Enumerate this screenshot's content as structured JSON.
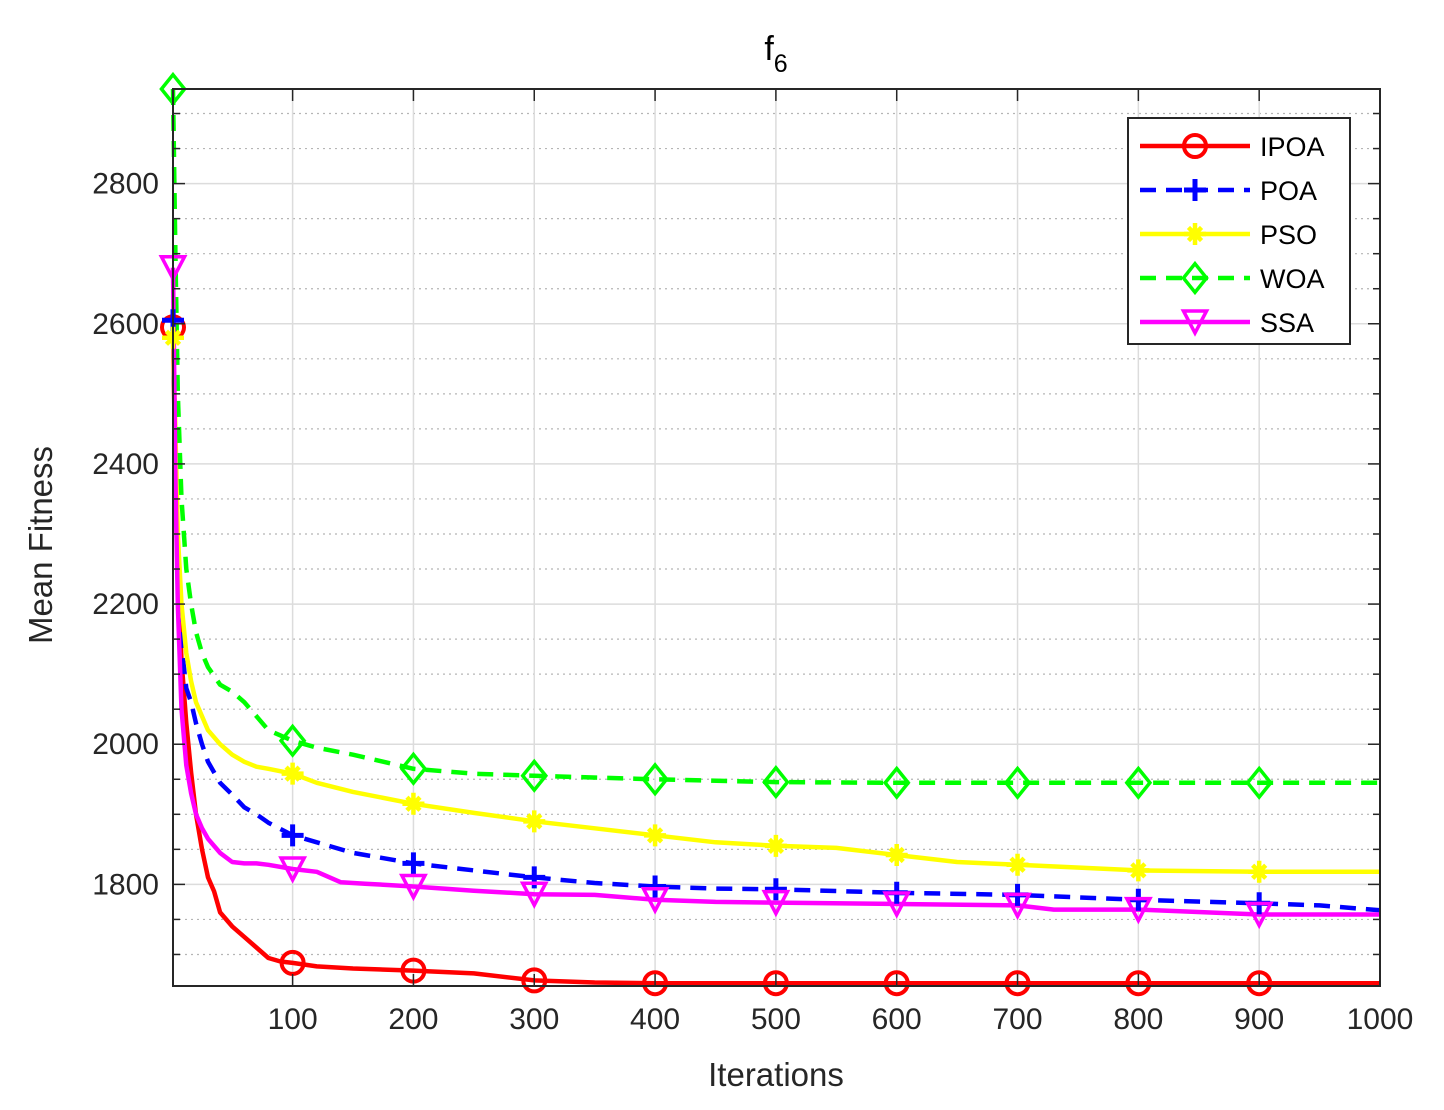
{
  "chart_data": {
    "type": "line",
    "title": "f",
    "title_subscript": "6",
    "xlabel": "Iterations",
    "ylabel": "Mean Fitness",
    "xlim": [
      1,
      1000
    ],
    "ylim": [
      1655,
      2935
    ],
    "x_ticks": [
      100,
      200,
      300,
      400,
      500,
      600,
      700,
      800,
      900,
      1000
    ],
    "y_ticks": [
      1800,
      2000,
      2200,
      2400,
      2600,
      2800
    ],
    "grid": true,
    "minor_grid": true,
    "legend_position": "top-right",
    "series": [
      {
        "name": "IPOA",
        "color": "#ff0000",
        "dash": "solid",
        "marker": "circle",
        "x": [
          1,
          3,
          5,
          8,
          12,
          16,
          20,
          25,
          30,
          35,
          40,
          50,
          60,
          70,
          80,
          90,
          100,
          120,
          150,
          200,
          250,
          300,
          350,
          400,
          500,
          600,
          700,
          800,
          900,
          1000
        ],
        "y": [
          2595,
          2380,
          2230,
          2120,
          2030,
          1960,
          1900,
          1850,
          1810,
          1790,
          1760,
          1740,
          1725,
          1710,
          1695,
          1690,
          1688,
          1683,
          1680,
          1677,
          1673,
          1663,
          1660,
          1659,
          1659,
          1659,
          1659,
          1659,
          1659,
          1659
        ]
      },
      {
        "name": "POA",
        "color": "#0000ff",
        "dash": "dashed",
        "marker": "plus",
        "x": [
          1,
          3,
          5,
          8,
          12,
          16,
          20,
          25,
          30,
          40,
          50,
          60,
          70,
          80,
          100,
          120,
          150,
          200,
          250,
          300,
          350,
          400,
          450,
          500,
          600,
          700,
          800,
          900,
          950,
          1000
        ],
        "y": [
          2605,
          2420,
          2250,
          2140,
          2080,
          2060,
          2030,
          2000,
          1975,
          1945,
          1928,
          1910,
          1900,
          1888,
          1870,
          1860,
          1845,
          1830,
          1820,
          1810,
          1802,
          1797,
          1794,
          1793,
          1788,
          1785,
          1778,
          1773,
          1770,
          1763
        ]
      },
      {
        "name": "PSO",
        "color": "#ffff00",
        "dash": "solid",
        "marker": "asterisk",
        "x": [
          1,
          3,
          5,
          8,
          12,
          16,
          20,
          25,
          30,
          40,
          50,
          60,
          70,
          80,
          100,
          120,
          150,
          200,
          250,
          300,
          350,
          400,
          450,
          500,
          550,
          600,
          650,
          700,
          800,
          900,
          1000
        ],
        "y": [
          2580,
          2450,
          2300,
          2200,
          2130,
          2090,
          2060,
          2040,
          2020,
          2000,
          1985,
          1975,
          1968,
          1965,
          1958,
          1945,
          1932,
          1915,
          1902,
          1890,
          1880,
          1870,
          1860,
          1855,
          1852,
          1842,
          1832,
          1828,
          1820,
          1818,
          1818
        ]
      },
      {
        "name": "WOA",
        "color": "#00ff00",
        "dash": "dashed",
        "marker": "diamond",
        "x": [
          1,
          3,
          5,
          8,
          12,
          16,
          20,
          25,
          30,
          40,
          50,
          60,
          70,
          80,
          100,
          120,
          150,
          200,
          250,
          300,
          400,
          500,
          600,
          700,
          800,
          900,
          1000
        ],
        "y": [
          2935,
          2700,
          2500,
          2350,
          2250,
          2200,
          2160,
          2130,
          2110,
          2085,
          2075,
          2060,
          2040,
          2020,
          2005,
          1995,
          1985,
          1965,
          1958,
          1955,
          1950,
          1946,
          1945,
          1945,
          1945,
          1945,
          1945
        ]
      },
      {
        "name": "SSA",
        "color": "#ff00ff",
        "dash": "solid",
        "marker": "triangle-down",
        "x": [
          1,
          3,
          5,
          8,
          12,
          16,
          20,
          25,
          30,
          40,
          50,
          60,
          70,
          80,
          100,
          120,
          140,
          160,
          200,
          250,
          300,
          350,
          400,
          450,
          500,
          600,
          700,
          730,
          800,
          900,
          1000
        ],
        "y": [
          2680,
          2380,
          2200,
          2050,
          1970,
          1930,
          1900,
          1880,
          1865,
          1845,
          1832,
          1830,
          1830,
          1828,
          1822,
          1818,
          1803,
          1801,
          1797,
          1791,
          1786,
          1785,
          1778,
          1775,
          1774,
          1772,
          1770,
          1764,
          1764,
          1757,
          1757
        ]
      }
    ]
  }
}
